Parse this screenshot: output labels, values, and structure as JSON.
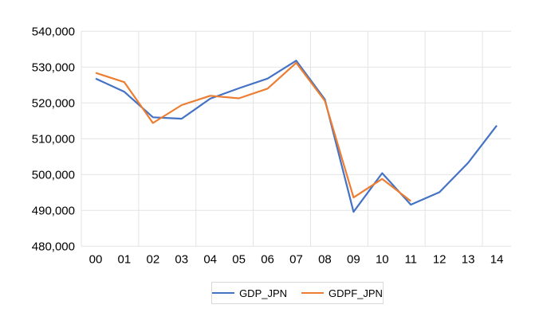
{
  "chart_data": {
    "type": "line",
    "title": "",
    "xlabel": "",
    "ylabel": "",
    "categories": [
      "00",
      "01",
      "02",
      "03",
      "04",
      "05",
      "06",
      "07",
      "08",
      "09",
      "10",
      "11",
      "12",
      "13",
      "14"
    ],
    "ylim": [
      480000,
      540000
    ],
    "yticks": [
      480000,
      490000,
      500000,
      510000,
      520000,
      530000,
      540000
    ],
    "ytick_labels": [
      "480,000",
      "490,000",
      "500,000",
      "510,000",
      "520,000",
      "530,000",
      "540,000"
    ],
    "grid": true,
    "legend_position": "bottom",
    "series": [
      {
        "name": "GDP_JPN",
        "color": "#4472c4",
        "values": [
          526800,
          523100,
          516000,
          515600,
          521200,
          524100,
          526800,
          531800,
          521000,
          489600,
          500400,
          491600,
          495100,
          503300,
          513700
        ]
      },
      {
        "name": "GDPF_JPN",
        "color": "#ed7d31",
        "values": [
          528400,
          525800,
          514400,
          519400,
          522000,
          521300,
          524000,
          531200,
          520600,
          493600,
          498800,
          492600,
          null,
          null,
          null
        ]
      }
    ]
  }
}
